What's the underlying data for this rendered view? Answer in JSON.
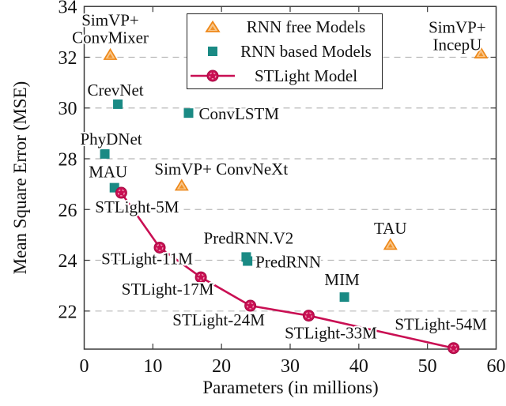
{
  "legend": {
    "items": [
      {
        "label": "RNN free Models",
        "marker": "triangle",
        "color": "#ee8819"
      },
      {
        "label": "RNN based Models",
        "marker": "square",
        "color": "#1a8a84"
      },
      {
        "label": "STLight Model",
        "marker": "line-circle",
        "color": "#c90f53"
      }
    ]
  },
  "chart_data": {
    "type": "scatter",
    "title": "",
    "xlabel": "Parameters (in millions)",
    "ylabel": "Mean Square Error (MSE)",
    "xlim": [
      0,
      60
    ],
    "ylim": [
      20.5,
      34
    ],
    "x_ticks": [
      0,
      10,
      20,
      30,
      40,
      50,
      60
    ],
    "y_ticks": [
      22,
      24,
      26,
      28,
      30,
      32,
      34
    ],
    "grid": "horizontal dashed",
    "legend_position": "top center inside",
    "background": "#ffffff",
    "grid_color": "#b8b8b8",
    "frame_color": "#3a3a3a",
    "text_color": "#111111",
    "series": [
      {
        "name": "RNN free Models",
        "type": "scatter",
        "marker": "triangle",
        "color": "#ee8819",
        "points": [
          {
            "label": "SimVP+\nConvMixer",
            "x": 3.8,
            "y": 32.09,
            "label_dx": 0,
            "label_dy": -37,
            "label_anchor": "middle"
          },
          {
            "label": "SimVP+ ConvNeXt",
            "x": 14.2,
            "y": 26.94,
            "label_dx": 50,
            "label_dy": -14,
            "label_anchor": "middle"
          },
          {
            "label": "TAU",
            "x": 44.6,
            "y": 24.61,
            "label_dx": 0,
            "label_dy": -14,
            "label_anchor": "middle"
          },
          {
            "label": "SimVP+\nIncepU",
            "x": 57.8,
            "y": 32.15,
            "label_dx": -30,
            "label_dy": -26,
            "label_anchor": "middle"
          }
        ]
      },
      {
        "name": "RNN based Models",
        "type": "scatter",
        "marker": "square",
        "color": "#1a8a84",
        "points": [
          {
            "label": "CrevNet",
            "x": 4.9,
            "y": 30.15,
            "label_dx": -3,
            "label_dy": -11,
            "label_anchor": "middle"
          },
          {
            "label": "PhyDNet",
            "x": 3.0,
            "y": 28.19,
            "label_dx": 8,
            "label_dy": -12,
            "label_anchor": "middle"
          },
          {
            "label": "MAU",
            "x": 4.4,
            "y": 26.86,
            "label_dx": -8,
            "label_dy": -13,
            "label_anchor": "middle"
          },
          {
            "label": "ConvLSTM",
            "x": 15.2,
            "y": 29.8,
            "label_dx": 13,
            "label_dy": 8,
            "label_anchor": "start"
          },
          {
            "label": "PredRNN.V2",
            "x": 23.6,
            "y": 24.13,
            "label_dx": 3,
            "label_dy": -17,
            "label_anchor": "middle"
          },
          {
            "label": "PredRNN",
            "x": 23.8,
            "y": 23.97,
            "label_dx": 10,
            "label_dy": 8,
            "label_anchor": "start"
          },
          {
            "label": "MIM",
            "x": 37.9,
            "y": 22.55,
            "label_dx": -3,
            "label_dy": -15,
            "label_anchor": "middle"
          }
        ]
      },
      {
        "name": "STLight Model",
        "type": "line",
        "marker": "circle",
        "color": "#c90f53",
        "points": [
          {
            "label": "STLight-5M",
            "x": 5.4,
            "y": 26.66,
            "label_dx": 20,
            "label_dy": 25,
            "label_anchor": "middle"
          },
          {
            "label": "STLight-11M",
            "x": 11.0,
            "y": 24.5,
            "label_dx": -16,
            "label_dy": 21,
            "label_anchor": "middle"
          },
          {
            "label": "STLight-17M",
            "x": 17.0,
            "y": 23.33,
            "label_dx": -42,
            "label_dy": 22,
            "label_anchor": "middle"
          },
          {
            "label": "STLight-24M",
            "x": 24.2,
            "y": 22.21,
            "label_dx": -40,
            "label_dy": 25,
            "label_anchor": "middle"
          },
          {
            "label": "STLight-33M",
            "x": 32.7,
            "y": 21.82,
            "label_dx": 28,
            "label_dy": 29,
            "label_anchor": "middle"
          },
          {
            "label": "STLight-54M",
            "x": 53.8,
            "y": 20.54,
            "label_dx": -16,
            "label_dy": -23,
            "label_anchor": "middle"
          }
        ]
      }
    ]
  }
}
